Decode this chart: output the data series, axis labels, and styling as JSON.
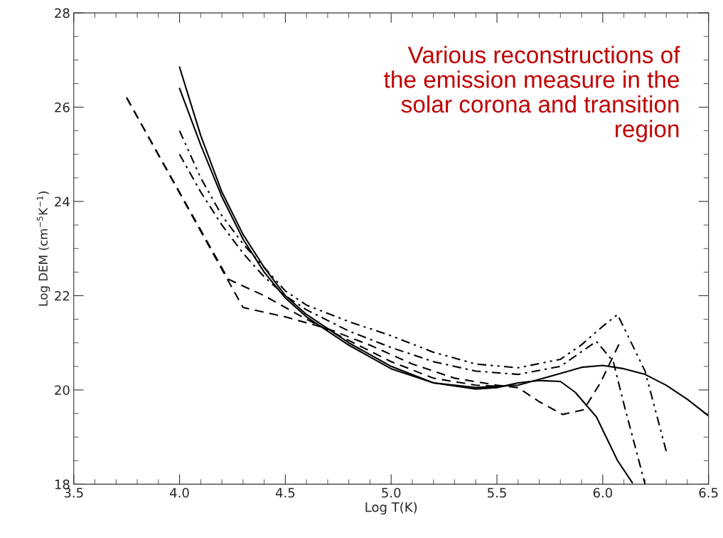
{
  "chart_data": {
    "type": "line",
    "xlabel": "Log T(K)",
    "ylabel": "Log DEM (cm$^{−5}$K$^{−1}$)",
    "xlim": [
      3.5,
      6.5
    ],
    "xticks": [
      {
        "value": 3.5,
        "label": "3.5"
      },
      {
        "value": 4.0,
        "label": "4.0"
      },
      {
        "value": 4.5,
        "label": "4.5"
      },
      {
        "value": 5.0,
        "label": "5.0"
      },
      {
        "value": 5.5,
        "label": "5.5"
      },
      {
        "value": 6.0,
        "label": "6.0"
      },
      {
        "value": 6.5,
        "label": "6.5"
      }
    ],
    "ylim": [
      18,
      28
    ],
    "yticks": [
      18,
      20,
      22,
      24,
      26,
      28
    ],
    "grid": false,
    "marker": "none",
    "annotations": [
      "Various reconstructions of\nthe emission measure in the\nsolar corona and transition\nregion"
    ],
    "series": [
      {
        "color": "#000000",
        "line_style": "solid",
        "x": [
          4.0,
          4.1,
          4.2,
          4.3,
          4.4,
          4.5,
          4.6,
          4.8,
          5.0,
          5.2,
          5.4,
          5.5,
          5.6,
          5.7,
          5.8,
          5.87,
          5.97,
          6.07,
          6.14
        ],
        "values": [
          26.85,
          25.4,
          24.2,
          23.3,
          22.6,
          22.0,
          21.6,
          21.0,
          20.5,
          20.15,
          20.02,
          20.05,
          20.15,
          20.2,
          20.18,
          19.95,
          19.43,
          18.5,
          18.03
        ]
      },
      {
        "color": "#000000",
        "line_style": "solid",
        "x": [
          4.0,
          4.1,
          4.2,
          4.3,
          4.4,
          4.5,
          4.6,
          4.8,
          5.0,
          5.2,
          5.4,
          5.6,
          5.8,
          5.9,
          6.0,
          6.1,
          6.2,
          6.3,
          6.4,
          6.5
        ],
        "values": [
          26.4,
          25.2,
          24.1,
          23.2,
          22.5,
          21.95,
          21.55,
          20.95,
          20.45,
          20.15,
          20.05,
          20.1,
          20.35,
          20.48,
          20.52,
          20.45,
          20.33,
          20.1,
          19.8,
          19.45
        ]
      },
      {
        "color": "#000000",
        "line_style": "dashed",
        "x": [
          3.75,
          4.3,
          4.5,
          4.7,
          4.9,
          5.1,
          5.3,
          5.5,
          5.6,
          5.7,
          5.81,
          5.91,
          5.99,
          6.08
        ],
        "values": [
          26.2,
          21.75,
          21.55,
          21.3,
          20.95,
          20.55,
          20.25,
          20.1,
          20.05,
          19.75,
          19.48,
          19.58,
          20.16,
          21.0
        ]
      },
      {
        "color": "#000000",
        "line_style": "dashed",
        "x": [
          3.75,
          4.23,
          4.4,
          4.6,
          4.8,
          5.0,
          5.2,
          5.4,
          5.5
        ],
        "values": [
          26.2,
          22.35,
          22.0,
          21.5,
          21.05,
          20.6,
          20.25,
          20.1,
          20.08
        ]
      },
      {
        "color": "#000000",
        "line_style": "dashdot",
        "x": [
          4.0,
          4.1,
          4.2,
          4.3,
          4.4,
          4.5,
          4.6,
          4.8,
          5.0,
          5.2,
          5.4,
          5.6,
          5.8,
          5.97,
          6.05,
          6.1,
          6.2
        ],
        "values": [
          25.0,
          24.2,
          23.5,
          22.9,
          22.4,
          22.0,
          21.7,
          21.25,
          20.9,
          20.6,
          20.4,
          20.33,
          20.5,
          21.03,
          20.6,
          19.7,
          18.0
        ]
      },
      {
        "color": "#000000",
        "line_style": "dashdotdot",
        "x": [
          4.0,
          4.1,
          4.2,
          4.3,
          4.4,
          4.5,
          4.6,
          4.8,
          5.0,
          5.2,
          5.4,
          5.6,
          5.8,
          5.9,
          6.0,
          6.07,
          6.2,
          6.3
        ],
        "values": [
          25.5,
          24.5,
          23.7,
          23.1,
          22.6,
          22.1,
          21.8,
          21.45,
          21.15,
          20.8,
          20.55,
          20.47,
          20.65,
          20.96,
          21.35,
          21.6,
          20.4,
          18.7
        ]
      }
    ]
  }
}
